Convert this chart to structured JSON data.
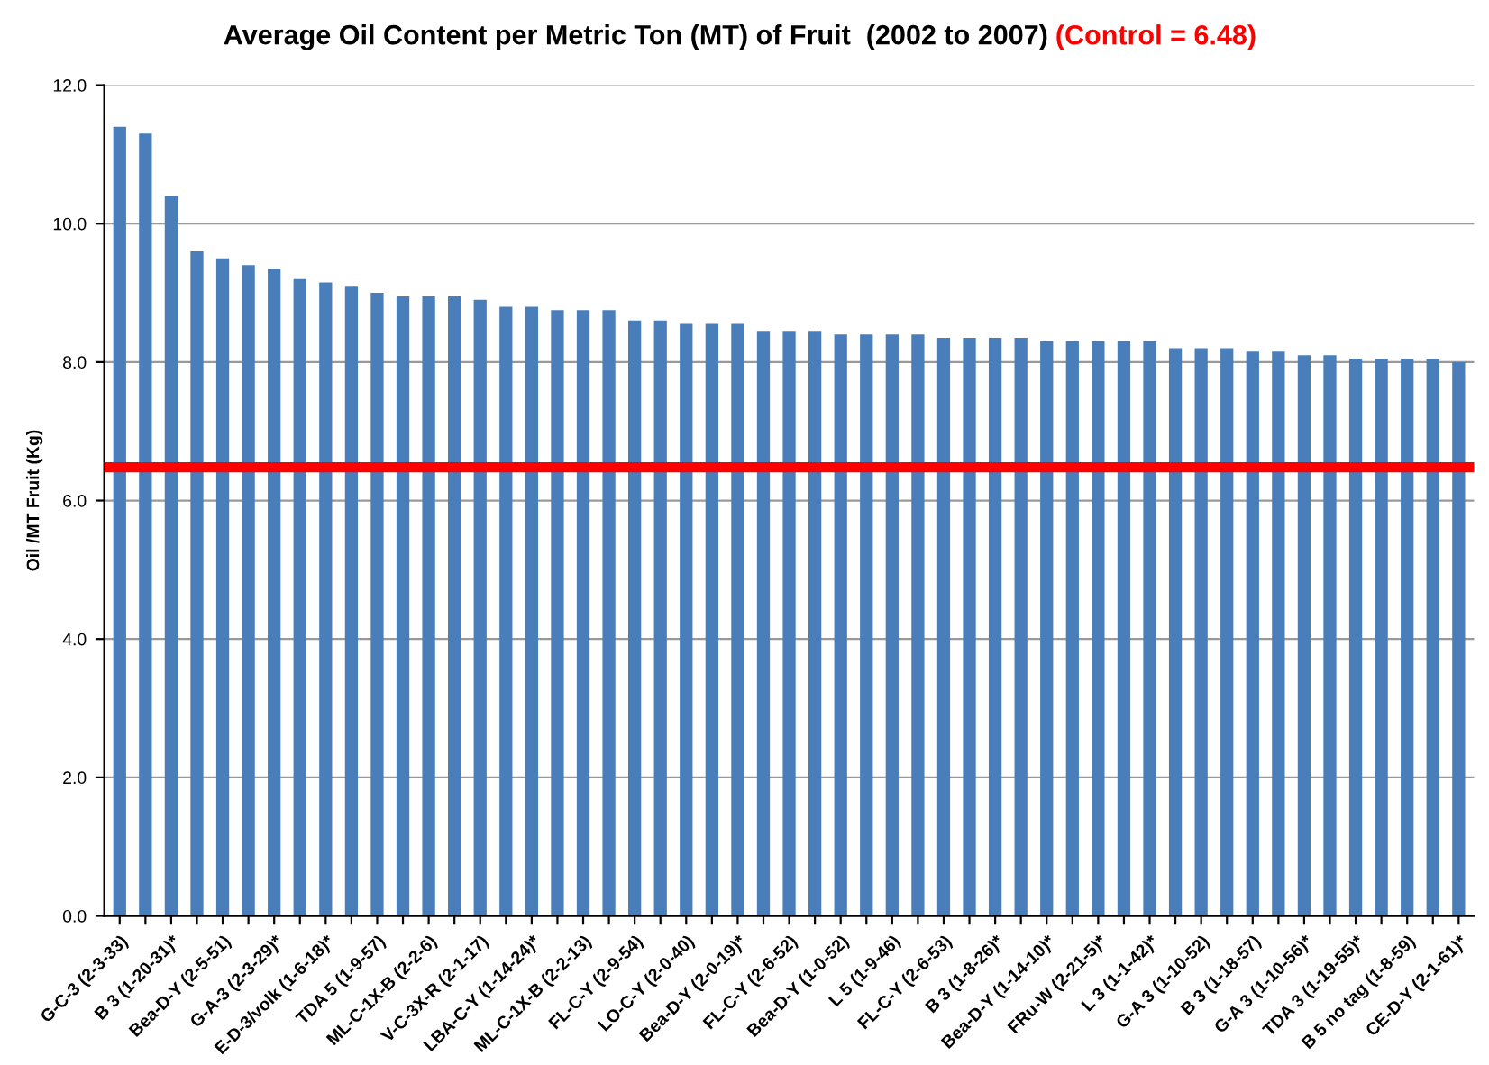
{
  "chart_data": {
    "type": "bar",
    "title": "Average Oil Content per Metric Ton (MT) of Fruit  (2002 to 2007)",
    "ylabel": "Oil /MT Fruit (Kg)",
    "categories": [
      "G-C-3 (2-3-33)",
      null,
      "B 3 (1-20-31)*",
      null,
      "Bea-D-Y (2-5-51)",
      null,
      "G-A-3 (2-3-29)*",
      null,
      "E-D-3/volk (1-6-18)*",
      null,
      "TDA 5 (1-9-57)",
      null,
      "ML-C-1X-B (2-2-6)",
      null,
      "V-C-3X-R (2-1-17)",
      null,
      "LBA-C-Y (1-14-24)*",
      null,
      "ML-C-1X-B (2-2-13)",
      null,
      "FL-C-Y (2-9-54)",
      null,
      "LO-C-Y (2-0-40)",
      null,
      "Bea-D-Y (2-0-19)*",
      null,
      "FL-C-Y (2-6-52)",
      null,
      "Bea-D-Y (1-0-52)",
      null,
      "L 5 (1-9-46)",
      null,
      "FL-C-Y (2-6-53)",
      null,
      "B 3 (1-8-26)*",
      null,
      "Bea-D-Y (1-14-10)*",
      null,
      "FRu-W (2-21-5)*",
      null,
      "L 3 (1-1-42)*",
      null,
      "G-A 3 (1-10-52)",
      null,
      "B 3 (1-18-57)",
      null,
      "G-A 3 (1-10-56)*",
      null,
      "TDA 3 (1-19-55)*",
      null,
      "B 5 no tag (1-8-59)",
      null,
      "CE-D-Y (2-1-61)*"
    ],
    "values": [
      11.4,
      11.3,
      10.4,
      9.6,
      9.5,
      9.4,
      9.35,
      9.2,
      9.15,
      9.1,
      9.0,
      8.95,
      8.95,
      8.95,
      8.9,
      8.8,
      8.8,
      8.75,
      8.75,
      8.75,
      8.6,
      8.6,
      8.55,
      8.55,
      8.55,
      8.45,
      8.45,
      8.45,
      8.4,
      8.4,
      8.4,
      8.4,
      8.35,
      8.35,
      8.35,
      8.35,
      8.3,
      8.3,
      8.3,
      8.3,
      8.3,
      8.2,
      8.2,
      8.2,
      8.15,
      8.15,
      8.1,
      8.1,
      8.05,
      8.05,
      8.05,
      8.05,
      8.0
    ],
    "color": "#4a7ebb",
    "ylim": [
      0,
      12
    ],
    "yticks": [
      {
        "value": 0,
        "label": "0.0"
      },
      {
        "value": 2,
        "label": "2.0"
      },
      {
        "value": 4,
        "label": "4.0"
      },
      {
        "value": 6,
        "label": "6.0"
      },
      {
        "value": 8,
        "label": "8.0"
      },
      {
        "value": 10,
        "label": "10.0"
      },
      {
        "value": 12,
        "label": "12.0"
      }
    ],
    "grid": "y",
    "ref_lines": [
      {
        "axis": "y",
        "value": 6.48,
        "label": "(Control = 6.48)",
        "color": "#ff0000"
      }
    ]
  }
}
